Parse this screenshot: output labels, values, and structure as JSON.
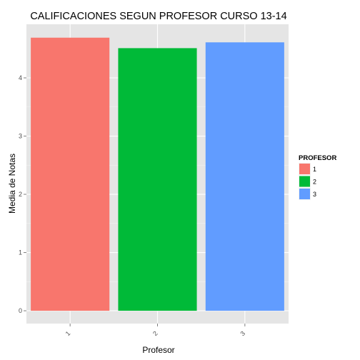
{
  "chart_data": {
    "type": "bar",
    "title": "CALIFICACIONES SEGUN PROFESOR CURSO 13-14",
    "xlabel": "Profesor",
    "ylabel": "Media de Notas",
    "categories": [
      "1",
      "2",
      "3"
    ],
    "values": [
      4.69,
      4.51,
      4.61
    ],
    "colors": [
      "#F8766D",
      "#00BA38",
      "#619CFF"
    ],
    "ylim": [
      -0.22,
      4.92
    ],
    "yticks": [
      0,
      1,
      2,
      3,
      4
    ],
    "grid": true,
    "background": "#E5E5E5",
    "legend": {
      "title": "PROFESOR",
      "placement": "right",
      "entries": [
        "1",
        "2",
        "3"
      ]
    }
  }
}
